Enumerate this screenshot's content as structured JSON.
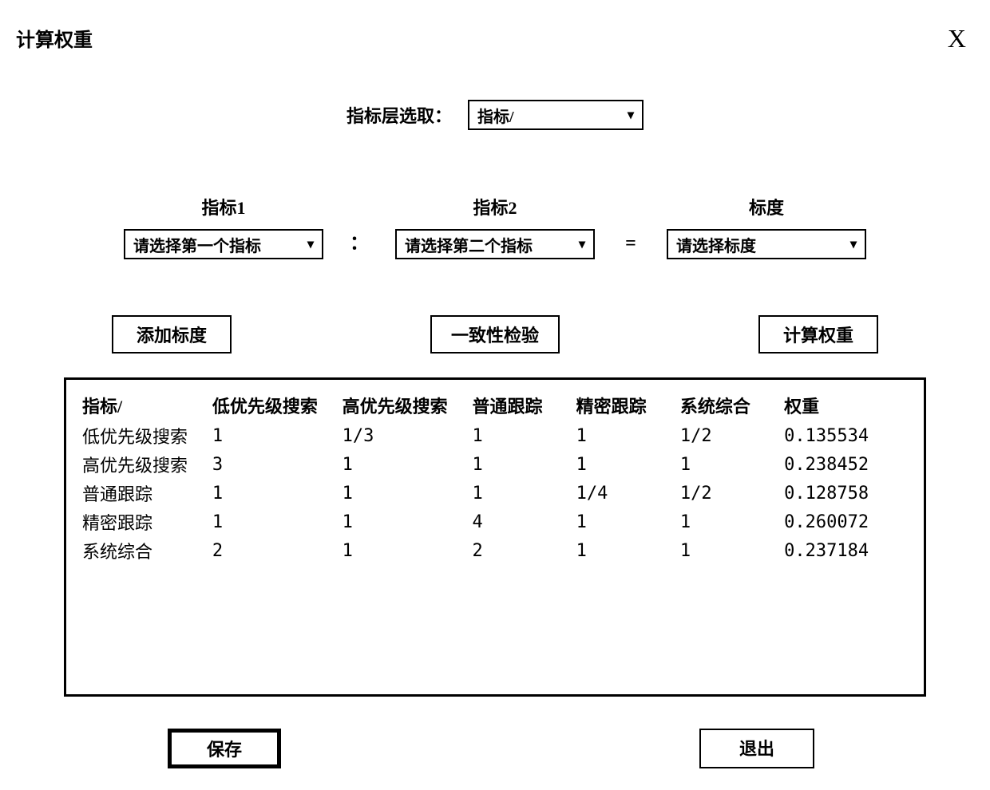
{
  "dialog": {
    "title": "计算权重",
    "close_icon": "X"
  },
  "layer_select": {
    "label": "指标层选取：",
    "value": "指标/"
  },
  "selectors": {
    "indicator1": {
      "header": "指标1",
      "placeholder": "请选择第一个指标"
    },
    "colon": "：",
    "indicator2": {
      "header": "指标2",
      "placeholder": "请选择第二个指标"
    },
    "equals": "=",
    "scale": {
      "header": "标度",
      "placeholder": "请选择标度"
    }
  },
  "actions": {
    "add_scale": "添加标度",
    "consistency_check": "一致性检验",
    "calc_weight": "计算权重"
  },
  "table": {
    "columns": [
      "指标/",
      "低优先级搜索",
      "高优先级搜索",
      "普通跟踪",
      "精密跟踪",
      "系统综合",
      "权重"
    ],
    "rows": [
      [
        "低优先级搜索",
        "1",
        "1/3",
        "1",
        "1",
        "1/2",
        "0.135534"
      ],
      [
        "高优先级搜索",
        "3",
        "1",
        "1",
        "1",
        "1",
        "0.238452"
      ],
      [
        "普通跟踪",
        "1",
        "1",
        "1",
        "1/4",
        "1/2",
        "0.128758"
      ],
      [
        "精密跟踪",
        "1",
        "1",
        "4",
        "1",
        "1",
        "0.260072"
      ],
      [
        "系统综合",
        "2",
        "1",
        "2",
        "1",
        "1",
        "0.237184"
      ]
    ],
    "col_widths": [
      "15%",
      "15%",
      "15%",
      "12%",
      "12%",
      "12%",
      "15%"
    ]
  },
  "bottom": {
    "save": "保存",
    "exit": "退出"
  },
  "style": {
    "background_color": "#ffffff",
    "text_color": "#000000",
    "border_color": "#000000",
    "font_family": "SimSun",
    "title_fontsize": 24,
    "label_fontsize": 22,
    "table_fontsize": 22
  }
}
